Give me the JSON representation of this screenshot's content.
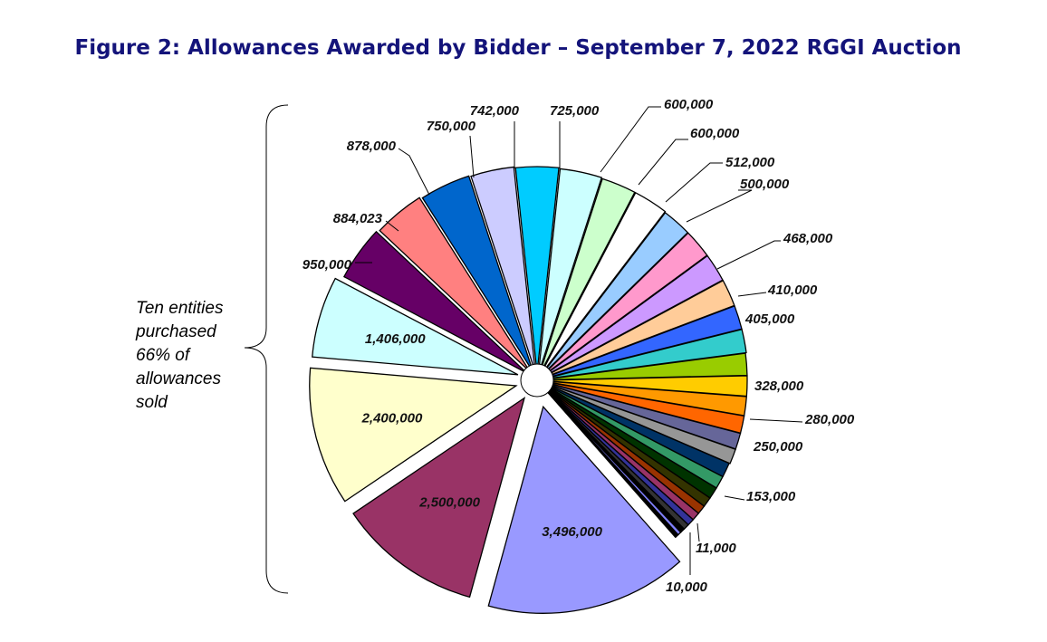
{
  "chart_data": {
    "type": "pie",
    "title": "Figure 2: Allowances Awarded by Bidder – September 7, 2022 RGGI Auction",
    "annotation": [
      "Ten entities",
      "purchased",
      "66% of",
      "allowances",
      "sold"
    ],
    "slices": [
      {
        "value": 3496000,
        "label": "3,496,000",
        "color": "#9999ff"
      },
      {
        "value": 2500000,
        "label": "2,500,000",
        "color": "#993366"
      },
      {
        "value": 2400000,
        "label": "2,400,000",
        "color": "#ffffcc"
      },
      {
        "value": 1406000,
        "label": "1,406,000",
        "color": "#ccffff"
      },
      {
        "value": 950000,
        "label": "950,000",
        "color": "#660066"
      },
      {
        "value": 884023,
        "label": "884,023",
        "color": "#ff8080"
      },
      {
        "value": 878000,
        "label": "878,000",
        "color": "#0066cc"
      },
      {
        "value": 750000,
        "label": "750,000",
        "color": "#ccccff"
      },
      {
        "value": 742000,
        "label": "742,000",
        "color": "#00ccff"
      },
      {
        "value": 725000,
        "label": "725,000",
        "color": "#ccffff"
      },
      {
        "value": 600000,
        "label": "600,000",
        "color": "#ccffcc"
      },
      {
        "value": 600000,
        "label": "600,000",
        "color": "#ffffff"
      },
      {
        "value": 512000,
        "label": "512,000",
        "color": "#99ccff"
      },
      {
        "value": 500000,
        "label": "500,000",
        "color": "#ff99cc"
      },
      {
        "value": 490000,
        "label": "",
        "color": "#cc99ff"
      },
      {
        "value": 468000,
        "label": "468,000",
        "color": "#ffcc99"
      },
      {
        "value": 410000,
        "label": "410,000",
        "color": "#3366ff"
      },
      {
        "value": 405000,
        "label": "405,000",
        "color": "#33cccc"
      },
      {
        "value": 380000,
        "label": "",
        "color": "#99cc00"
      },
      {
        "value": 350000,
        "label": "",
        "color": "#ffcc00"
      },
      {
        "value": 328000,
        "label": "328,000",
        "color": "#ff9900"
      },
      {
        "value": 300000,
        "label": "",
        "color": "#ff6600"
      },
      {
        "value": 280000,
        "label": "280,000",
        "color": "#666699"
      },
      {
        "value": 260000,
        "label": "",
        "color": "#969696"
      },
      {
        "value": 250000,
        "label": "250,000",
        "color": "#003366"
      },
      {
        "value": 220000,
        "label": "",
        "color": "#339966"
      },
      {
        "value": 200000,
        "label": "",
        "color": "#003300"
      },
      {
        "value": 170000,
        "label": "",
        "color": "#333300"
      },
      {
        "value": 153000,
        "label": "153,000",
        "color": "#993300"
      },
      {
        "value": 140000,
        "label": "",
        "color": "#993366"
      },
      {
        "value": 120000,
        "label": "",
        "color": "#333399"
      },
      {
        "value": 100000,
        "label": "",
        "color": "#333333"
      },
      {
        "value": 80000,
        "label": "",
        "color": "#000000"
      },
      {
        "value": 60000,
        "label": "",
        "color": "#8080ff"
      },
      {
        "value": 40000,
        "label": "",
        "color": "#000000"
      },
      {
        "value": 11000,
        "label": "11,000",
        "color": "#ffffff"
      },
      {
        "value": 10000,
        "label": "10,000",
        "color": "#000000"
      }
    ]
  }
}
